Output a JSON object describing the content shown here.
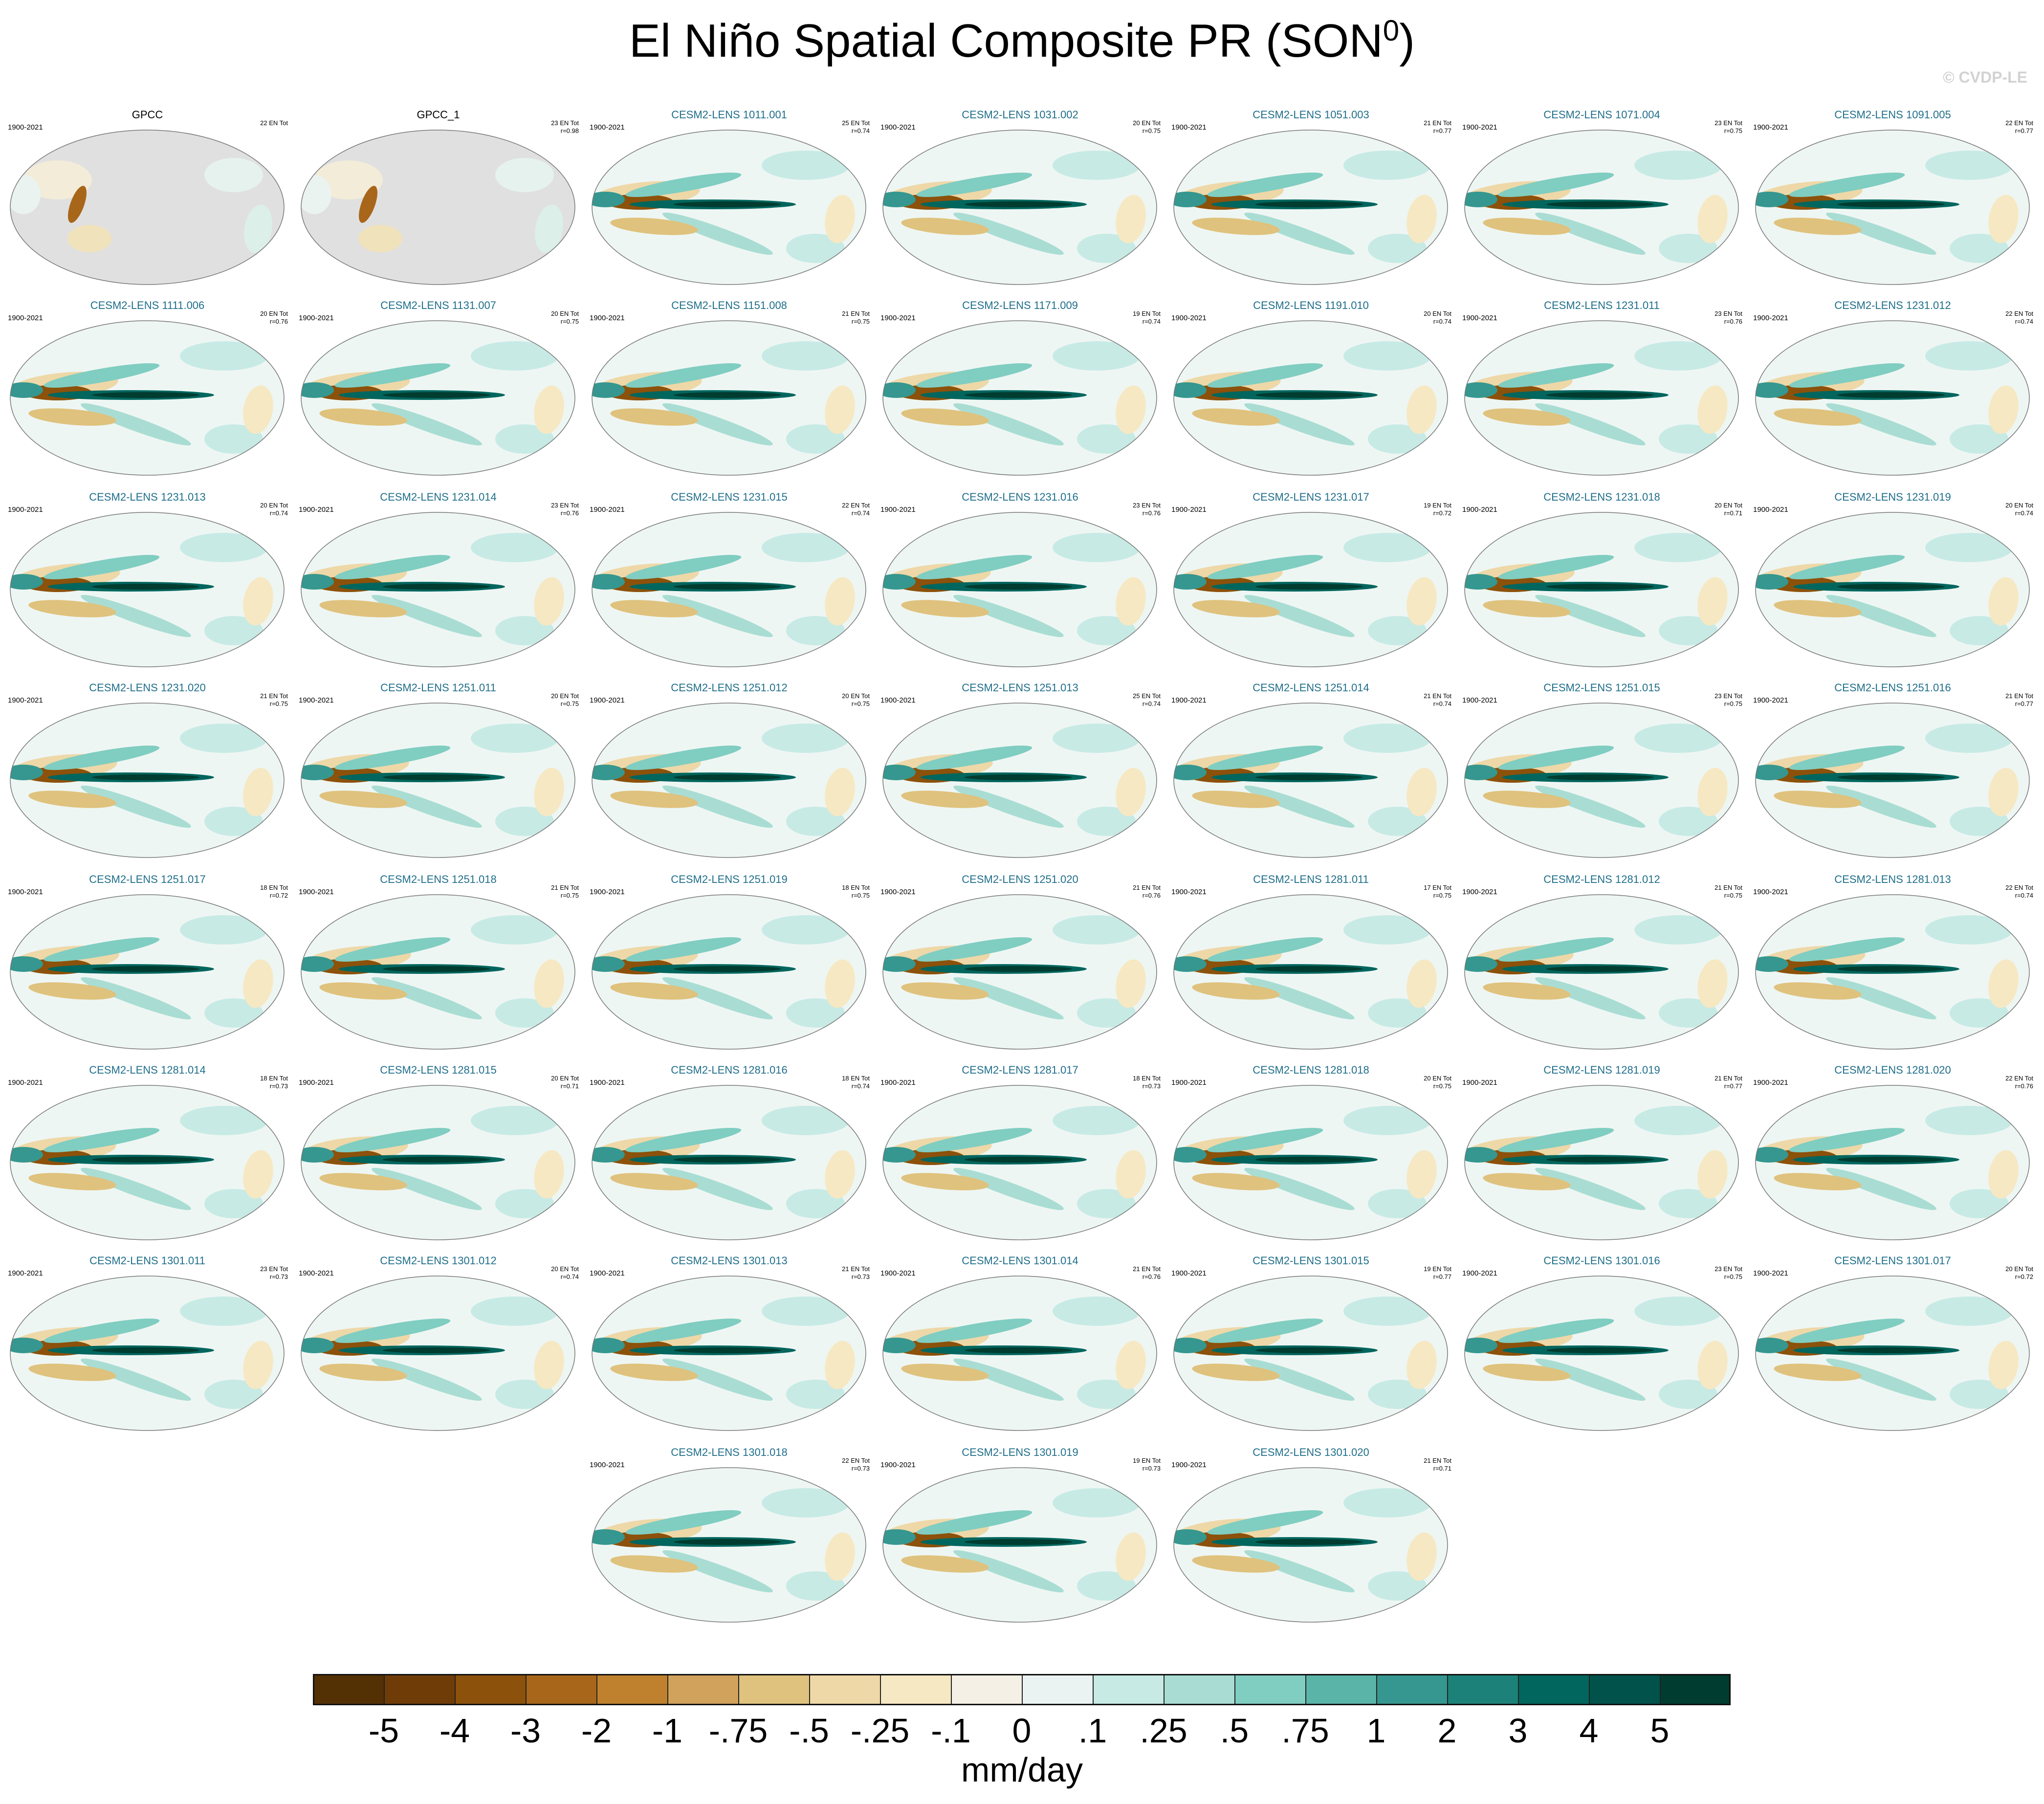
{
  "title": "El Niño Spatial Composite PR (SON",
  "title_sup": "0",
  "title_close": ")",
  "copyright": "© CVDP-LE",
  "panels": [
    {
      "name": "GPCC",
      "period": "1900-2021",
      "count": "22 EN Tot",
      "r": "",
      "obs": true
    },
    {
      "name": "GPCC_1",
      "period": "",
      "count": "23 EN Tot",
      "r": "r=0.98",
      "obs": true
    },
    {
      "name": "CESM2-LENS 1011.001",
      "period": "1900-2021",
      "count": "25 EN Tot",
      "r": "r=0.74"
    },
    {
      "name": "CESM2-LENS 1031.002",
      "period": "1900-2021",
      "count": "20 EN Tot",
      "r": "r=0.75"
    },
    {
      "name": "CESM2-LENS 1051.003",
      "period": "1900-2021",
      "count": "21 EN Tot",
      "r": "r=0.77"
    },
    {
      "name": "CESM2-LENS 1071.004",
      "period": "1900-2021",
      "count": "23 EN Tot",
      "r": "r=0.75"
    },
    {
      "name": "CESM2-LENS 1091.005",
      "period": "1900-2021",
      "count": "22 EN Tot",
      "r": "r=0.77"
    },
    {
      "name": "CESM2-LENS 1111.006",
      "period": "1900-2021",
      "count": "20 EN Tot",
      "r": "r=0.76"
    },
    {
      "name": "CESM2-LENS 1131.007",
      "period": "1900-2021",
      "count": "20 EN Tot",
      "r": "r=0.75"
    },
    {
      "name": "CESM2-LENS 1151.008",
      "period": "1900-2021",
      "count": "21 EN Tot",
      "r": "r=0.75"
    },
    {
      "name": "CESM2-LENS 1171.009",
      "period": "1900-2021",
      "count": "19 EN Tot",
      "r": "r=0.74"
    },
    {
      "name": "CESM2-LENS 1191.010",
      "period": "1900-2021",
      "count": "20 EN Tot",
      "r": "r=0.74"
    },
    {
      "name": "CESM2-LENS 1231.011",
      "period": "1900-2021",
      "count": "23 EN Tot",
      "r": "r=0.76"
    },
    {
      "name": "CESM2-LENS 1231.012",
      "period": "1900-2021",
      "count": "22 EN Tot",
      "r": "r=0.74"
    },
    {
      "name": "CESM2-LENS 1231.013",
      "period": "1900-2021",
      "count": "20 EN Tot",
      "r": "r=0.74"
    },
    {
      "name": "CESM2-LENS 1231.014",
      "period": "1900-2021",
      "count": "23 EN Tot",
      "r": "r=0.76"
    },
    {
      "name": "CESM2-LENS 1231.015",
      "period": "1900-2021",
      "count": "22 EN Tot",
      "r": "r=0.74"
    },
    {
      "name": "CESM2-LENS 1231.016",
      "period": "1900-2021",
      "count": "23 EN Tot",
      "r": "r=0.76"
    },
    {
      "name": "CESM2-LENS 1231.017",
      "period": "1900-2021",
      "count": "19 EN Tot",
      "r": "r=0.72"
    },
    {
      "name": "CESM2-LENS 1231.018",
      "period": "1900-2021",
      "count": "20 EN Tot",
      "r": "r=0.71"
    },
    {
      "name": "CESM2-LENS 1231.019",
      "period": "1900-2021",
      "count": "20 EN Tot",
      "r": "r=0.74"
    },
    {
      "name": "CESM2-LENS 1231.020",
      "period": "1900-2021",
      "count": "21 EN Tot",
      "r": "r=0.75"
    },
    {
      "name": "CESM2-LENS 1251.011",
      "period": "1900-2021",
      "count": "20 EN Tot",
      "r": "r=0.75"
    },
    {
      "name": "CESM2-LENS 1251.012",
      "period": "1900-2021",
      "count": "20 EN Tot",
      "r": "r=0.75"
    },
    {
      "name": "CESM2-LENS 1251.013",
      "period": "1900-2021",
      "count": "25 EN Tot",
      "r": "r=0.74"
    },
    {
      "name": "CESM2-LENS 1251.014",
      "period": "1900-2021",
      "count": "21 EN Tot",
      "r": "r=0.74"
    },
    {
      "name": "CESM2-LENS 1251.015",
      "period": "1900-2021",
      "count": "23 EN Tot",
      "r": "r=0.75"
    },
    {
      "name": "CESM2-LENS 1251.016",
      "period": "1900-2021",
      "count": "21 EN Tot",
      "r": "r=0.77"
    },
    {
      "name": "CESM2-LENS 1251.017",
      "period": "1900-2021",
      "count": "18 EN Tot",
      "r": "r=0.72"
    },
    {
      "name": "CESM2-LENS 1251.018",
      "period": "1900-2021",
      "count": "21 EN Tot",
      "r": "r=0.75"
    },
    {
      "name": "CESM2-LENS 1251.019",
      "period": "1900-2021",
      "count": "18 EN Tot",
      "r": "r=0.75"
    },
    {
      "name": "CESM2-LENS 1251.020",
      "period": "1900-2021",
      "count": "21 EN Tot",
      "r": "r=0.76"
    },
    {
      "name": "CESM2-LENS 1281.011",
      "period": "1900-2021",
      "count": "17 EN Tot",
      "r": "r=0.75"
    },
    {
      "name": "CESM2-LENS 1281.012",
      "period": "1900-2021",
      "count": "21 EN Tot",
      "r": "r=0.75"
    },
    {
      "name": "CESM2-LENS 1281.013",
      "period": "1900-2021",
      "count": "22 EN Tot",
      "r": "r=0.74"
    },
    {
      "name": "CESM2-LENS 1281.014",
      "period": "1900-2021",
      "count": "18 EN Tot",
      "r": "r=0.73"
    },
    {
      "name": "CESM2-LENS 1281.015",
      "period": "1900-2021",
      "count": "20 EN Tot",
      "r": "r=0.71"
    },
    {
      "name": "CESM2-LENS 1281.016",
      "period": "1900-2021",
      "count": "18 EN Tot",
      "r": "r=0.74"
    },
    {
      "name": "CESM2-LENS 1281.017",
      "period": "1900-2021",
      "count": "18 EN Tot",
      "r": "r=0.73"
    },
    {
      "name": "CESM2-LENS 1281.018",
      "period": "1900-2021",
      "count": "20 EN Tot",
      "r": "r=0.75"
    },
    {
      "name": "CESM2-LENS 1281.019",
      "period": "1900-2021",
      "count": "21 EN Tot",
      "r": "r=0.77"
    },
    {
      "name": "CESM2-LENS 1281.020",
      "period": "1900-2021",
      "count": "22 EN Tot",
      "r": "r=0.76"
    },
    {
      "name": "CESM2-LENS 1301.011",
      "period": "1900-2021",
      "count": "23 EN Tot",
      "r": "r=0.73"
    },
    {
      "name": "CESM2-LENS 1301.012",
      "period": "1900-2021",
      "count": "20 EN Tot",
      "r": "r=0.74"
    },
    {
      "name": "CESM2-LENS 1301.013",
      "period": "1900-2021",
      "count": "21 EN Tot",
      "r": "r=0.73"
    },
    {
      "name": "CESM2-LENS 1301.014",
      "period": "1900-2021",
      "count": "21 EN Tot",
      "r": "r=0.76"
    },
    {
      "name": "CESM2-LENS 1301.015",
      "period": "1900-2021",
      "count": "19 EN Tot",
      "r": "r=0.77"
    },
    {
      "name": "CESM2-LENS 1301.016",
      "period": "1900-2021",
      "count": "23 EN Tot",
      "r": "r=0.75"
    },
    {
      "name": "CESM2-LENS 1301.017",
      "period": "1900-2021",
      "count": "20 EN Tot",
      "r": "r=0.72"
    },
    {
      "name": "CESM2-LENS 1301.018",
      "period": "1900-2021",
      "count": "22 EN Tot",
      "r": "r=0.73"
    },
    {
      "name": "CESM2-LENS 1301.019",
      "period": "1900-2021",
      "count": "19 EN Tot",
      "r": "r=0.73"
    },
    {
      "name": "CESM2-LENS 1301.020",
      "period": "1900-2021",
      "count": "21 EN Tot",
      "r": "r=0.71"
    }
  ],
  "colorbar": {
    "units": "mm/day",
    "tick_labels": [
      "-5",
      "-4",
      "-3",
      "-2",
      "-1",
      "-.75",
      "-.5",
      "-.25",
      "-.1",
      "0",
      ".1",
      ".25",
      ".5",
      ".75",
      "1",
      "2",
      "3",
      "4",
      "5"
    ],
    "colors": [
      "#543005",
      "#6f3c08",
      "#8c510a",
      "#a8661a",
      "#bf812d",
      "#d0a25c",
      "#dfc27d",
      "#eed8a8",
      "#f6e8c3",
      "#f5f0e6",
      "#eaf3f1",
      "#c7eae5",
      "#a9ddd3",
      "#80cdc1",
      "#5ab4a7",
      "#35978f",
      "#1c8279",
      "#01665e",
      "#00524a",
      "#003c30"
    ]
  },
  "chart_data": {
    "type": "heatmap",
    "title": "El Niño Spatial Composite PR (SON0)",
    "units": "mm/day",
    "levels": [
      -5,
      -4,
      -3,
      -2,
      -1,
      -0.75,
      -0.5,
      -0.25,
      -0.1,
      0,
      0.1,
      0.25,
      0.5,
      0.75,
      1,
      2,
      3,
      4,
      5
    ],
    "panel_count": 52
  }
}
